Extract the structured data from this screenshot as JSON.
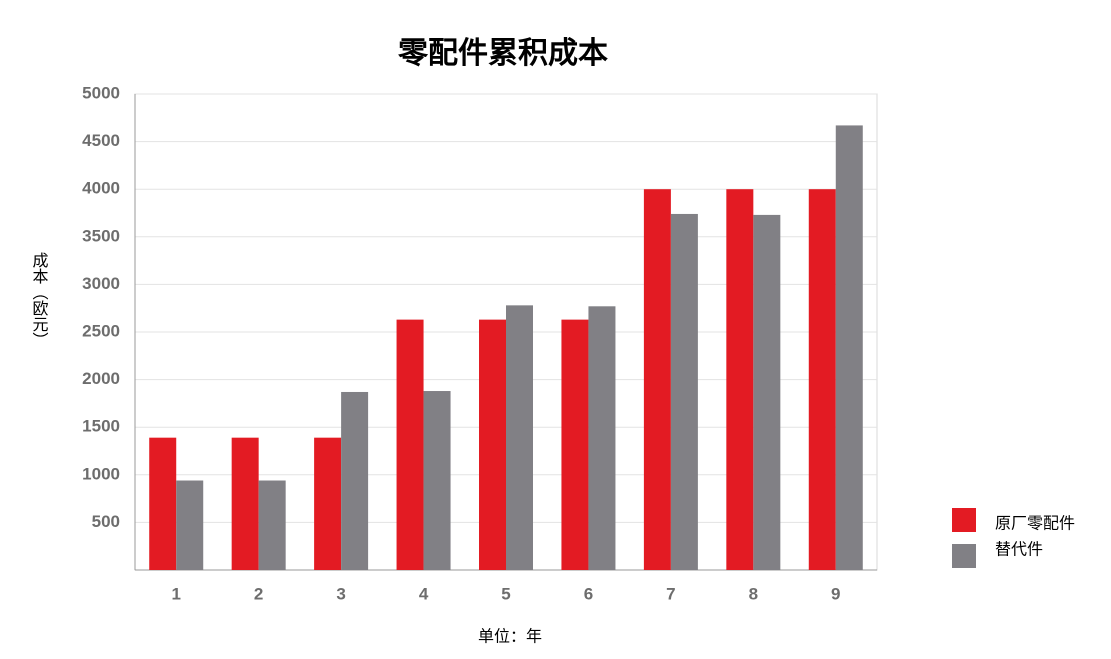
{
  "chart_data": {
    "type": "bar",
    "title": "零配件累积成本",
    "x_label": "单位：年",
    "y_label": "成本（欧元）",
    "categories": [
      "1",
      "2",
      "3",
      "4",
      "5",
      "6",
      "7",
      "8",
      "9"
    ],
    "series": [
      {
        "name": "原厂零配件",
        "color": "#e31b23",
        "values": [
          1390,
          1390,
          1390,
          2630,
          2630,
          2630,
          4000,
          4000,
          4000
        ]
      },
      {
        "name": "替代件",
        "color": "#818085",
        "values": [
          940,
          940,
          1870,
          1880,
          2780,
          2770,
          3740,
          3730,
          4670
        ]
      }
    ],
    "ylim": [
      0,
      5000
    ],
    "yticks": [
      500,
      1000,
      1500,
      2000,
      2500,
      3000,
      3500,
      4000,
      4500,
      5000
    ],
    "grid": true
  }
}
